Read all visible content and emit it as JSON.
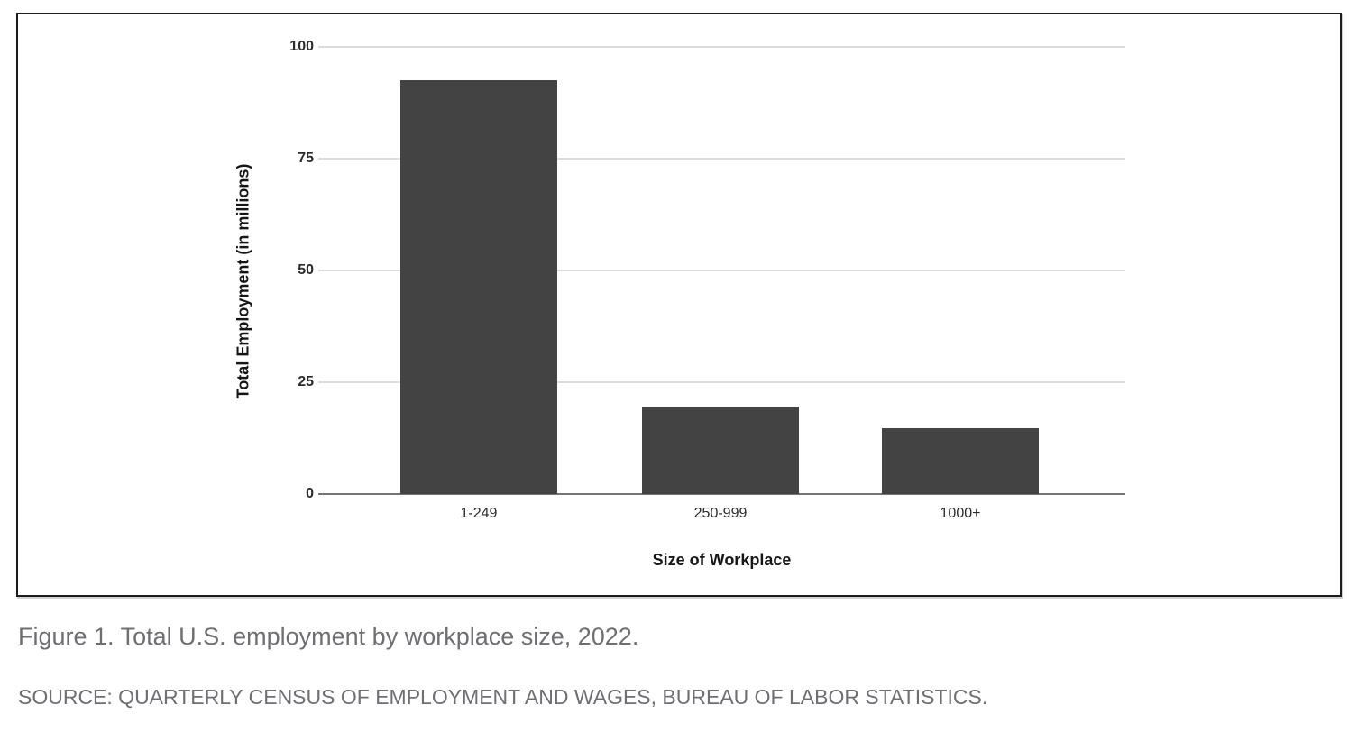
{
  "figure": {
    "caption": "Figure 1. Total U.S. employment by workplace size, 2022.",
    "source": "SOURCE: QUARTERLY CENSUS OF EMPLOYMENT AND WAGES, BUREAU OF LABOR STATISTICS."
  },
  "chart_data": {
    "type": "bar",
    "categories": [
      "1-249",
      "250-999",
      "1000+"
    ],
    "values": [
      92.5,
      19.5,
      14.8
    ],
    "title": "",
    "xlabel": "Size of Workplace",
    "ylabel": "Total Employment (in millions)",
    "ylim": [
      0,
      100
    ],
    "yticks": [
      0,
      25,
      50,
      75,
      100
    ],
    "grid": true,
    "legend": "none",
    "colors": {
      "bar": "#434343",
      "gridline": "#dddddd",
      "axis_line": "#757575",
      "tick_text": "#2a2b2d",
      "axis_title_text": "#151617",
      "frame_border": "#1c1c1c",
      "caption_text": "#6d6f73"
    }
  }
}
